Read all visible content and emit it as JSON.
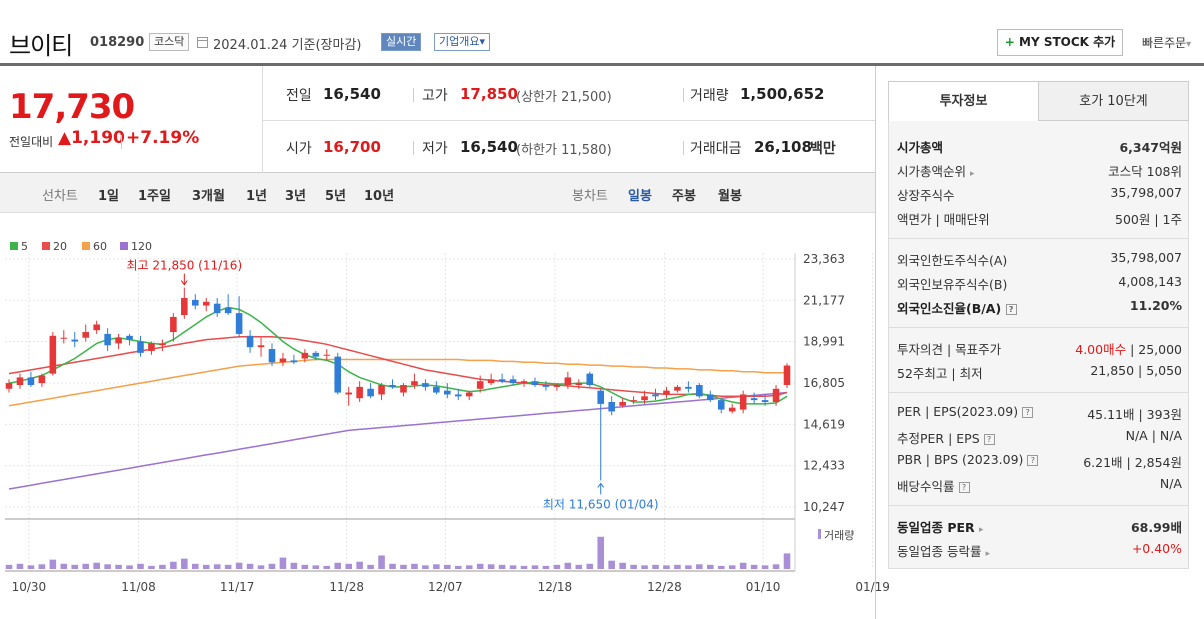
{
  "header": {
    "name": "브이티",
    "code": "018290",
    "market": "코스닥",
    "base_date": "2024.01.24 기준(장마감)",
    "realtime": "실시간",
    "company_info": "기업개요",
    "company_info_arrow": "▾",
    "mystock_plus": "+",
    "mystock": "MY STOCK 추가",
    "quick_order": "빠른주문",
    "quick_order_arrow": "▾"
  },
  "price": {
    "current": "17,730",
    "diff_label": "전일대비",
    "diff": "▲1,190",
    "pct": "+7.19%",
    "prev_label": "전일",
    "prev": "16,540",
    "high_label": "고가",
    "high": "17,850",
    "upper_limit": "(상한가 21,500)",
    "volume_label": "거래량",
    "volume": "1,500,652",
    "open_label": "시가",
    "open": "16,700",
    "low_label": "저가",
    "low": "16,540",
    "lower_limit": "(하한가 11,580)",
    "amount_label": "거래대금",
    "amount": "26,108",
    "amount_unit": "백만"
  },
  "period": {
    "line_label": "선차트",
    "line_items": [
      "1일",
      "1주일",
      "3개월",
      "1년",
      "3년",
      "5년",
      "10년"
    ],
    "candle_label": "봉차트",
    "candle_items": [
      "일봉",
      "주봉",
      "월봉"
    ]
  },
  "chart_data": {
    "type": "candlestick",
    "legend": [
      {
        "name": "5",
        "color": "#3cb44b"
      },
      {
        "name": "20",
        "color": "#e84c4c"
      },
      {
        "name": "60",
        "color": "#f5a04a"
      },
      {
        "name": "120",
        "color": "#9b72cf"
      }
    ],
    "y_ticks": [
      "23,363",
      "21,177",
      "18,991",
      "16,805",
      "14,619",
      "12,433",
      "10,247"
    ],
    "ylim": [
      10247,
      23363
    ],
    "x_ticks": [
      "10/30",
      "11/08",
      "11/17",
      "11/28",
      "12/07",
      "12/18",
      "12/28",
      "01/10",
      "01/19"
    ],
    "annotations": {
      "high": "최고 21,850 (11/16)",
      "low": "최저 11,650 (01/04)"
    },
    "volume_label": "거래량",
    "candles": [
      {
        "o": 16500,
        "h": 17000,
        "l": 16300,
        "c": 16800
      },
      {
        "o": 16700,
        "h": 17300,
        "l": 16500,
        "c": 17100
      },
      {
        "o": 17100,
        "h": 17400,
        "l": 16600,
        "c": 16700
      },
      {
        "o": 16800,
        "h": 17300,
        "l": 16600,
        "c": 17200
      },
      {
        "o": 17300,
        "h": 19500,
        "l": 17200,
        "c": 19300
      },
      {
        "o": 19200,
        "h": 19600,
        "l": 18900,
        "c": 19200
      },
      {
        "o": 19100,
        "h": 19500,
        "l": 18700,
        "c": 19000
      },
      {
        "o": 19200,
        "h": 19900,
        "l": 19000,
        "c": 19500
      },
      {
        "o": 19600,
        "h": 20100,
        "l": 19400,
        "c": 19900
      },
      {
        "o": 19400,
        "h": 19700,
        "l": 18500,
        "c": 18800
      },
      {
        "o": 18900,
        "h": 19400,
        "l": 18600,
        "c": 19200
      },
      {
        "o": 19300,
        "h": 19400,
        "l": 18800,
        "c": 19100
      },
      {
        "o": 19000,
        "h": 19300,
        "l": 18200,
        "c": 18400
      },
      {
        "o": 18500,
        "h": 19000,
        "l": 18300,
        "c": 18900
      },
      {
        "o": 18800,
        "h": 19100,
        "l": 18500,
        "c": 18900
      },
      {
        "o": 19500,
        "h": 20500,
        "l": 19000,
        "c": 20300
      },
      {
        "o": 20400,
        "h": 21850,
        "l": 20200,
        "c": 21300
      },
      {
        "o": 21200,
        "h": 21500,
        "l": 20700,
        "c": 20900
      },
      {
        "o": 20900,
        "h": 21300,
        "l": 20600,
        "c": 21100
      },
      {
        "o": 21000,
        "h": 21300,
        "l": 20300,
        "c": 20500
      },
      {
        "o": 20800,
        "h": 21500,
        "l": 20400,
        "c": 20500
      },
      {
        "o": 20500,
        "h": 21400,
        "l": 19200,
        "c": 19400
      },
      {
        "o": 19300,
        "h": 19600,
        "l": 18400,
        "c": 18700
      },
      {
        "o": 18700,
        "h": 19200,
        "l": 18200,
        "c": 18800
      },
      {
        "o": 18600,
        "h": 18900,
        "l": 17700,
        "c": 17900
      },
      {
        "o": 17900,
        "h": 18400,
        "l": 17700,
        "c": 18100
      },
      {
        "o": 18000,
        "h": 18300,
        "l": 17800,
        "c": 17900
      },
      {
        "o": 18100,
        "h": 18600,
        "l": 17900,
        "c": 18400
      },
      {
        "o": 18400,
        "h": 18500,
        "l": 18000,
        "c": 18200
      },
      {
        "o": 18300,
        "h": 18600,
        "l": 18000,
        "c": 18300
      },
      {
        "o": 18200,
        "h": 18400,
        "l": 16200,
        "c": 16300
      },
      {
        "o": 16200,
        "h": 16600,
        "l": 15600,
        "c": 16300
      },
      {
        "o": 16000,
        "h": 16900,
        "l": 15800,
        "c": 16600
      },
      {
        "o": 16500,
        "h": 16800,
        "l": 16000,
        "c": 16100
      },
      {
        "o": 16200,
        "h": 16800,
        "l": 15900,
        "c": 16700
      },
      {
        "o": 16700,
        "h": 17000,
        "l": 16500,
        "c": 16600
      },
      {
        "o": 16300,
        "h": 16800,
        "l": 16100,
        "c": 16700
      },
      {
        "o": 16700,
        "h": 17300,
        "l": 16500,
        "c": 16900
      },
      {
        "o": 16800,
        "h": 17000,
        "l": 16400,
        "c": 16600
      },
      {
        "o": 16600,
        "h": 16900,
        "l": 16200,
        "c": 16300
      },
      {
        "o": 16400,
        "h": 16800,
        "l": 16000,
        "c": 16200
      },
      {
        "o": 16200,
        "h": 16500,
        "l": 15900,
        "c": 16100
      },
      {
        "o": 16100,
        "h": 16400,
        "l": 15900,
        "c": 16300
      },
      {
        "o": 16500,
        "h": 17200,
        "l": 16300,
        "c": 16900
      },
      {
        "o": 16800,
        "h": 17300,
        "l": 16700,
        "c": 17000
      },
      {
        "o": 17000,
        "h": 17300,
        "l": 16800,
        "c": 16900
      },
      {
        "o": 17000,
        "h": 17200,
        "l": 16700,
        "c": 16800
      },
      {
        "o": 16800,
        "h": 17000,
        "l": 16600,
        "c": 16900
      },
      {
        "o": 16900,
        "h": 17100,
        "l": 16600,
        "c": 16700
      },
      {
        "o": 16700,
        "h": 16900,
        "l": 16400,
        "c": 16600
      },
      {
        "o": 16600,
        "h": 16800,
        "l": 16400,
        "c": 16700
      },
      {
        "o": 16700,
        "h": 17400,
        "l": 16500,
        "c": 17100
      },
      {
        "o": 16700,
        "h": 17000,
        "l": 16500,
        "c": 16800
      },
      {
        "o": 17300,
        "h": 17400,
        "l": 16600,
        "c": 16700
      },
      {
        "o": 16400,
        "h": 16500,
        "l": 11650,
        "c": 15700
      },
      {
        "o": 15800,
        "h": 16100,
        "l": 15100,
        "c": 15300
      },
      {
        "o": 15600,
        "h": 16000,
        "l": 15500,
        "c": 15800
      },
      {
        "o": 15900,
        "h": 16100,
        "l": 15700,
        "c": 15900
      },
      {
        "o": 15900,
        "h": 16400,
        "l": 15700,
        "c": 16100
      },
      {
        "o": 16200,
        "h": 16500,
        "l": 15900,
        "c": 16100
      },
      {
        "o": 16200,
        "h": 16600,
        "l": 16000,
        "c": 16400
      },
      {
        "o": 16400,
        "h": 16700,
        "l": 16300,
        "c": 16600
      },
      {
        "o": 16600,
        "h": 16900,
        "l": 16300,
        "c": 16500
      },
      {
        "o": 16700,
        "h": 16800,
        "l": 16000,
        "c": 16100
      },
      {
        "o": 16200,
        "h": 16400,
        "l": 15800,
        "c": 15900
      },
      {
        "o": 15900,
        "h": 16000,
        "l": 15200,
        "c": 15400
      },
      {
        "o": 15300,
        "h": 15700,
        "l": 15200,
        "c": 15500
      },
      {
        "o": 15400,
        "h": 16400,
        "l": 15200,
        "c": 16200
      },
      {
        "o": 16000,
        "h": 16300,
        "l": 15700,
        "c": 15900
      },
      {
        "o": 15900,
        "h": 16200,
        "l": 15600,
        "c": 15800
      },
      {
        "o": 15800,
        "h": 16700,
        "l": 15600,
        "c": 16500
      },
      {
        "o": 16700,
        "h": 17850,
        "l": 16540,
        "c": 17730
      }
    ],
    "volume_rel": [
      0.08,
      0.1,
      0.07,
      0.09,
      0.18,
      0.1,
      0.08,
      0.1,
      0.12,
      0.09,
      0.08,
      0.07,
      0.1,
      0.06,
      0.08,
      0.14,
      0.2,
      0.1,
      0.08,
      0.09,
      0.08,
      0.12,
      0.1,
      0.07,
      0.1,
      0.22,
      0.12,
      0.08,
      0.07,
      0.06,
      0.12,
      0.1,
      0.14,
      0.08,
      0.26,
      0.1,
      0.08,
      0.1,
      0.07,
      0.09,
      0.08,
      0.06,
      0.07,
      0.1,
      0.09,
      0.08,
      0.07,
      0.06,
      0.07,
      0.06,
      0.08,
      0.12,
      0.08,
      0.1,
      0.62,
      0.16,
      0.12,
      0.08,
      0.07,
      0.08,
      0.07,
      0.08,
      0.07,
      0.09,
      0.08,
      0.06,
      0.07,
      0.12,
      0.08,
      0.07,
      0.09,
      0.3
    ],
    "ma5": [
      16800,
      16900,
      17050,
      17200,
      17500,
      17800,
      18100,
      18500,
      18900,
      19100,
      19200,
      19100,
      19000,
      18900,
      18850,
      19100,
      19500,
      19900,
      20300,
      20600,
      20800,
      20700,
      20400,
      20000,
      19500,
      19000,
      18600,
      18300,
      18100,
      18000,
      17800,
      17400,
      17100,
      16900,
      16700,
      16600,
      16600,
      16650,
      16700,
      16650,
      16550,
      16450,
      16350,
      16400,
      16500,
      16600,
      16700,
      16800,
      16850,
      16800,
      16750,
      16750,
      16800,
      16800,
      16600,
      16300,
      16000,
      15800,
      15800,
      15850,
      15950,
      16050,
      16200,
      16250,
      16150,
      15950,
      15800,
      15700,
      15700,
      15700,
      15750,
      16100
    ],
    "ma20": [
      17300,
      17400,
      17500,
      17600,
      17700,
      17800,
      17900,
      18000,
      18100,
      18200,
      18300,
      18400,
      18500,
      18600,
      18700,
      18800,
      18900,
      19000,
      19100,
      19150,
      19200,
      19250,
      19250,
      19250,
      19250,
      19200,
      19150,
      19050,
      18950,
      18850,
      18700,
      18550,
      18400,
      18250,
      18100,
      17950,
      17800,
      17650,
      17500,
      17400,
      17300,
      17200,
      17100,
      17000,
      16950,
      16900,
      16850,
      16800,
      16750,
      16700,
      16700,
      16650,
      16600,
      16550,
      16500,
      16450,
      16400,
      16350,
      16300,
      16250,
      16200,
      16200,
      16200,
      16200,
      16150,
      16100,
      16100,
      16100,
      16100,
      16100,
      16150,
      16300
    ],
    "ma60": [
      15600,
      15700,
      15800,
      15900,
      16000,
      16100,
      16200,
      16300,
      16400,
      16500,
      16600,
      16700,
      16800,
      16900,
      17000,
      17100,
      17200,
      17300,
      17400,
      17500,
      17600,
      17700,
      17750,
      17800,
      17850,
      17900,
      17950,
      18000,
      18050,
      18050,
      18050,
      18050,
      18050,
      18050,
      18050,
      18050,
      18050,
      18050,
      18050,
      18050,
      18050,
      18050,
      18000,
      18000,
      18000,
      17950,
      17950,
      17900,
      17900,
      17850,
      17850,
      17800,
      17800,
      17750,
      17750,
      17700,
      17700,
      17650,
      17650,
      17600,
      17600,
      17550,
      17550,
      17500,
      17500,
      17450,
      17450,
      17400,
      17400,
      17350,
      17350,
      17350
    ],
    "ma120": [
      11200,
      11300,
      11400,
      11500,
      11600,
      11700,
      11800,
      11900,
      12000,
      12100,
      12200,
      12300,
      12400,
      12500,
      12600,
      12700,
      12800,
      12900,
      13000,
      13100,
      13200,
      13300,
      13400,
      13500,
      13600,
      13700,
      13800,
      13900,
      14000,
      14100,
      14200,
      14300,
      14350,
      14400,
      14450,
      14500,
      14550,
      14600,
      14650,
      14700,
      14750,
      14800,
      14850,
      14900,
      14950,
      15000,
      15050,
      15100,
      15150,
      15200,
      15250,
      15300,
      15350,
      15400,
      15450,
      15500,
      15550,
      15600,
      15650,
      15700,
      15750,
      15800,
      15850,
      15900,
      15950,
      16000,
      16050,
      16100,
      16150,
      16200,
      16250,
      16300
    ]
  },
  "side": {
    "tab1": "투자정보",
    "tab2": "호가 10단계",
    "rows1": [
      {
        "label": "시가총액",
        "value": "6,347억원"
      },
      {
        "label": "시가총액순위",
        "value": "코스닥 108위"
      },
      {
        "label": "상장주식수",
        "value": "35,798,007"
      },
      {
        "label": "액면가 | 매매단위",
        "value": "500원 | 1주"
      }
    ],
    "rows2": [
      {
        "label": "외국인한도주식수(A)",
        "value": "35,798,007"
      },
      {
        "label": "외국인보유주식수(B)",
        "value": "4,008,143"
      },
      {
        "label": "외국인소진율(B/A)",
        "value": "11.20%"
      }
    ],
    "rows3": [
      {
        "label": "투자의견 | 목표주가",
        "value_red": "4.00매수",
        "value": " | 25,000"
      },
      {
        "label": "52주최고 | 최저",
        "value": "21,850 | 5,050"
      }
    ],
    "rows4": [
      {
        "label": "PER | EPS(2023.09)",
        "value": "45.11배 | 393원"
      },
      {
        "label": "추정PER | EPS",
        "value": "N/A | N/A"
      },
      {
        "label": "PBR | BPS (2023.09)",
        "value": "6.21배 | 2,854원"
      },
      {
        "label": "배당수익률",
        "value": "N/A"
      }
    ],
    "rows5": [
      {
        "label": "동일업종 PER",
        "value": "68.99배"
      },
      {
        "label": "동일업종 등락률",
        "value": "+0.40%"
      }
    ],
    "arrow": "▸",
    "q": "?"
  }
}
